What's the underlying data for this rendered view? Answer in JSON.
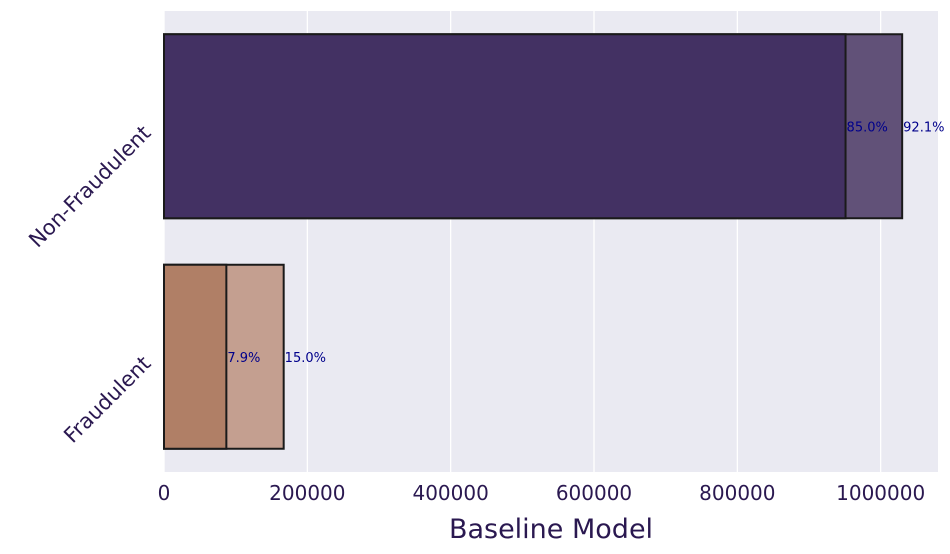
{
  "chart_data": {
    "type": "bar",
    "orientation": "horizontal",
    "title": "",
    "xlabel": "Baseline Model",
    "ylabel": "",
    "xlim": [
      0,
      1080000
    ],
    "xticks": [
      0,
      200000,
      400000,
      600000,
      800000,
      1000000
    ],
    "xtick_labels": [
      "0",
      "200000",
      "400000",
      "600000",
      "800000",
      "1000000"
    ],
    "grid": true,
    "categories": [
      "Non-Fraudulent",
      "Fraudulent"
    ],
    "series": [
      {
        "values": [
          1030000,
          167000
        ],
        "labels": [
          "92.1%",
          "15.0%"
        ],
        "colors": [
          "#615178",
          "#c49f90"
        ]
      },
      {
        "values": [
          951000,
          87000
        ],
        "labels": [
          "85.0%",
          "7.9%"
        ],
        "colors": [
          "#433163",
          "#b07f66"
        ]
      }
    ],
    "colors": {
      "background": "#eaeaf2",
      "grid": "#ffffff",
      "edge": "#1a1a1a",
      "text": "#2a1850",
      "data_label": "#00008b"
    }
  }
}
